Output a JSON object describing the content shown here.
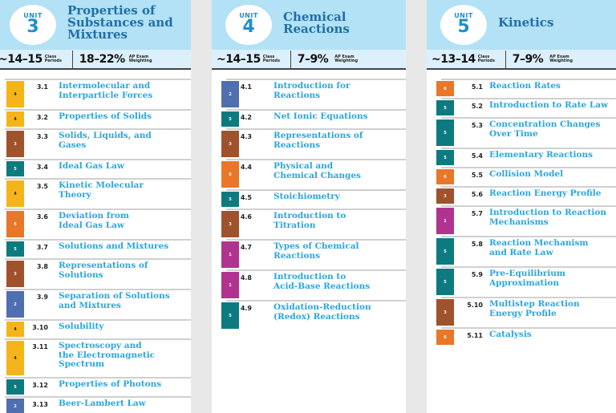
{
  "colors": {
    "header_bg": "#b3e1f6",
    "stats_bg": "#dcf0fb",
    "title": "#1f6fa6",
    "topic": "#2aa6e0",
    "badge_4": "#f5b41a",
    "badge_3": "#a0522d",
    "badge_5": "#0d7a80",
    "badge_6": "#e8772a",
    "badge_2": "#4f6faf",
    "badge_1": "#b0348f"
  },
  "units": [
    {
      "unit_label": "UNIT",
      "unit_number": "3",
      "title_lines": [
        "Properties of",
        "Substances and",
        "Mixtures"
      ],
      "class_periods": "~14–15",
      "class_periods_label": [
        "Class",
        "Periods"
      ],
      "exam_weighting": "18–22%",
      "exam_weighting_label": [
        "AP Exam",
        "Weighting"
      ],
      "topics": [
        {
          "number": "3.1",
          "title": "Intermolecular and Interparticle Forces",
          "lines": [
            "Intermolecular and",
            "Interparticle Forces"
          ],
          "skill": "4"
        },
        {
          "number": "3.2",
          "title": "Properties of Solids",
          "lines": [
            "Properties of Solids"
          ],
          "skill": "4"
        },
        {
          "number": "3.3",
          "title": "Solids, Liquids, and Gases",
          "lines": [
            "Solids, Liquids, and",
            "Gases"
          ],
          "skill": "3"
        },
        {
          "number": "3.4",
          "title": "Ideal Gas Law",
          "lines": [
            "Ideal Gas Law"
          ],
          "skill": "5"
        },
        {
          "number": "3.5",
          "title": "Kinetic Molecular Theory",
          "lines": [
            "Kinetic Molecular",
            "Theory"
          ],
          "skill": "4"
        },
        {
          "number": "3.6",
          "title": "Deviation from Ideal Gas Law",
          "lines": [
            "Deviation from",
            "Ideal Gas Law"
          ],
          "skill": "6"
        },
        {
          "number": "3.7",
          "title": "Solutions and Mixtures",
          "lines": [
            "Solutions and Mixtures"
          ],
          "skill": "5"
        },
        {
          "number": "3.8",
          "title": "Representations of Solutions",
          "lines": [
            "Representations of",
            "Solutions"
          ],
          "skill": "3"
        },
        {
          "number": "3.9",
          "title": "Separation of Solutions and Mixtures",
          "lines": [
            "Separation of Solutions",
            "and Mixtures"
          ],
          "skill": "2"
        },
        {
          "number": "3.10",
          "title": "Solubility",
          "lines": [
            "Solubility"
          ],
          "skill": "4"
        },
        {
          "number": "3.11",
          "title": "Spectroscopy and the Electromagnetic Spectrum",
          "lines": [
            "Spectroscopy and",
            "the Electromagnetic",
            "Spectrum"
          ],
          "skill": "4"
        },
        {
          "number": "3.12",
          "title": "Properties of Photons",
          "lines": [
            "Properties of Photons"
          ],
          "skill": "5"
        },
        {
          "number": "3.13",
          "title": "Beer-Lambert Law",
          "lines": [
            "Beer-Lambert Law"
          ],
          "skill": "2"
        }
      ]
    },
    {
      "unit_label": "UNIT",
      "unit_number": "4",
      "title_lines": [
        "Chemical",
        "Reactions"
      ],
      "class_periods": "~14–15",
      "class_periods_label": [
        "Class",
        "Periods"
      ],
      "exam_weighting": "7–9%",
      "exam_weighting_label": [
        "AP Exam",
        "Weighting"
      ],
      "topics": [
        {
          "number": "4.1",
          "title": "Introduction for Reactions",
          "lines": [
            "Introduction for",
            "Reactions"
          ],
          "skill": "2"
        },
        {
          "number": "4.2",
          "title": "Net Ionic Equations",
          "lines": [
            "Net Ionic Equations"
          ],
          "skill": "5"
        },
        {
          "number": "4.3",
          "title": "Representations of Reactions",
          "lines": [
            "Representations of",
            "Reactions"
          ],
          "skill": "3"
        },
        {
          "number": "4.4",
          "title": "Physical and Chemical Changes",
          "lines": [
            "Physical and",
            "Chemical Changes"
          ],
          "skill": "6"
        },
        {
          "number": "4.5",
          "title": "Stoichiometry",
          "lines": [
            "Stoichiometry"
          ],
          "skill": "5"
        },
        {
          "number": "4.6",
          "title": "Introduction to Titration",
          "lines": [
            "Introduction to",
            "Titration"
          ],
          "skill": "3"
        },
        {
          "number": "4.7",
          "title": "Types of Chemical Reactions",
          "lines": [
            "Types of Chemical",
            "Reactions"
          ],
          "skill": "1"
        },
        {
          "number": "4.8",
          "title": "Introduction to Acid-Base Reactions",
          "lines": [
            "Introduction to",
            "Acid-Base Reactions"
          ],
          "skill": "1"
        },
        {
          "number": "4.9",
          "title": "Oxidation-Reduction (Redox) Reactions",
          "lines": [
            "Oxidation-Reduction",
            "(Redox) Reactions"
          ],
          "skill": "5"
        }
      ]
    },
    {
      "unit_label": "UNIT",
      "unit_number": "5",
      "title_lines": [
        "Kinetics"
      ],
      "class_periods": "~13–14",
      "class_periods_label": [
        "Class",
        "Periods"
      ],
      "exam_weighting": "7–9%",
      "exam_weighting_label": [
        "AP Exam",
        "Weighting"
      ],
      "topics": [
        {
          "number": "5.1",
          "title": "Reaction Rates",
          "lines": [
            "Reaction Rates"
          ],
          "skill": "6"
        },
        {
          "number": "5.2",
          "title": "Introduction to Rate Law",
          "lines": [
            "Introduction to Rate Law"
          ],
          "skill": "5"
        },
        {
          "number": "5.3",
          "title": "Concentration Changes Over Time",
          "lines": [
            "Concentration Changes",
            "Over Time"
          ],
          "skill": "5"
        },
        {
          "number": "5.4",
          "title": "Elementary Reactions",
          "lines": [
            "Elementary Reactions"
          ],
          "skill": "5"
        },
        {
          "number": "5.5",
          "title": "Collision Model",
          "lines": [
            "Collision Model"
          ],
          "skill": "6"
        },
        {
          "number": "5.6",
          "title": "Reaction Energy Profile",
          "lines": [
            "Reaction Energy Profile"
          ],
          "skill": "3"
        },
        {
          "number": "5.7",
          "title": "Introduction to Reaction Mechanisms",
          "lines": [
            "Introduction to Reaction",
            "Mechanisms"
          ],
          "skill": "1"
        },
        {
          "number": "5.8",
          "title": "Reaction Mechanism and Rate Law",
          "lines": [
            "Reaction Mechanism",
            "and Rate Law"
          ],
          "skill": "5"
        },
        {
          "number": "5.9",
          "title": "Pre-Equilibrium Approximation",
          "lines": [
            "Pre-Equilibrium",
            "Approximation"
          ],
          "skill": "5"
        },
        {
          "number": "5.10",
          "title": "Multistep Reaction Energy Profile",
          "lines": [
            "Multistep Reaction",
            "Energy Profile"
          ],
          "skill": "3"
        },
        {
          "number": "5.11",
          "title": "Catalysis",
          "lines": [
            "Catalysis"
          ],
          "skill": "6"
        }
      ]
    }
  ]
}
